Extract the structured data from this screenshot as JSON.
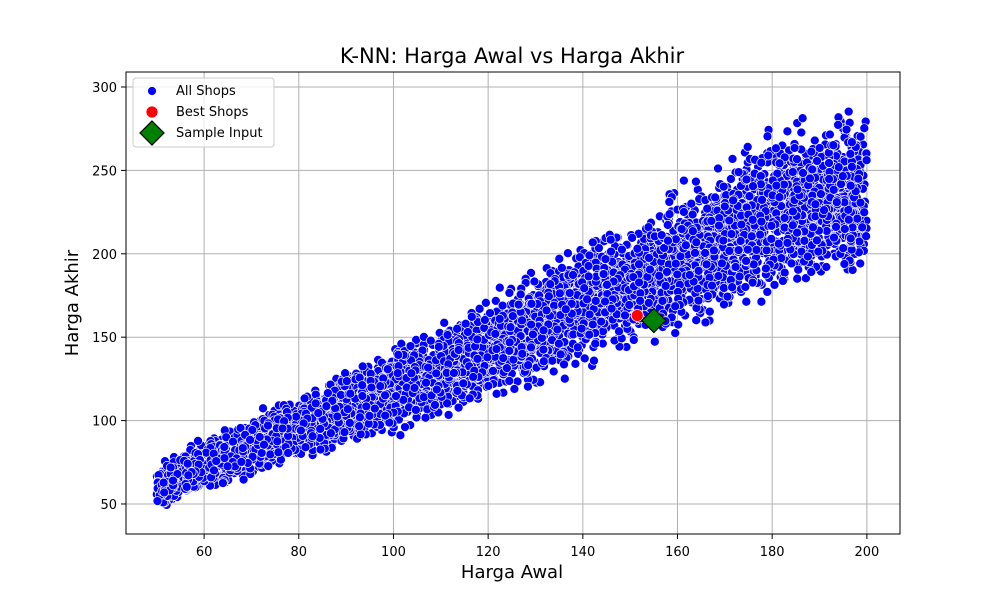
{
  "chart_data": {
    "type": "scatter",
    "title": "K-NN: Harga Awal vs Harga Akhir",
    "xlabel": "Harga Awal",
    "ylabel": "Harga Akhir",
    "xlim": [
      43.5,
      207
    ],
    "ylim": [
      32,
      309
    ],
    "xticks": [
      60,
      80,
      100,
      120,
      140,
      160,
      180,
      200
    ],
    "yticks": [
      50,
      100,
      150,
      200,
      250,
      300
    ],
    "grid": true,
    "legend_position": "top-left",
    "colors": {
      "all_shops": "#0000ff",
      "best_shops": "#ff0000",
      "sample_input": "#008000",
      "sample_input_edge": "#000000",
      "grid": "#b0b0b0"
    },
    "series": [
      {
        "name": "All Shops",
        "marker": "circle",
        "distribution": {
          "x_range": [
            50,
            200
          ],
          "ratio_min": [
            0.9,
            0.92,
            0.94,
            0.96
          ],
          "ratio_max": [
            1.5,
            1.5,
            1.5,
            1.5
          ],
          "ratio_x_breaks": [
            50,
            100,
            150,
            200
          ]
        },
        "boundary": {
          "x": [
            50,
            60,
            80,
            100,
            120,
            140,
            155,
            160,
            180,
            200
          ],
          "y_min": [
            45,
            54,
            72,
            88,
            108,
            125,
            145,
            140,
            165,
            175
          ],
          "y_max": [
            75,
            92,
            118,
            148,
            176,
            215,
            232,
            248,
            286,
            297
          ]
        }
      },
      {
        "name": "Best Shops",
        "marker": "circle",
        "x": [
          151.5
        ],
        "y": [
          163
        ]
      },
      {
        "name": "Sample Input",
        "marker": "diamond",
        "x": [
          155
        ],
        "y": [
          160
        ]
      }
    ]
  }
}
